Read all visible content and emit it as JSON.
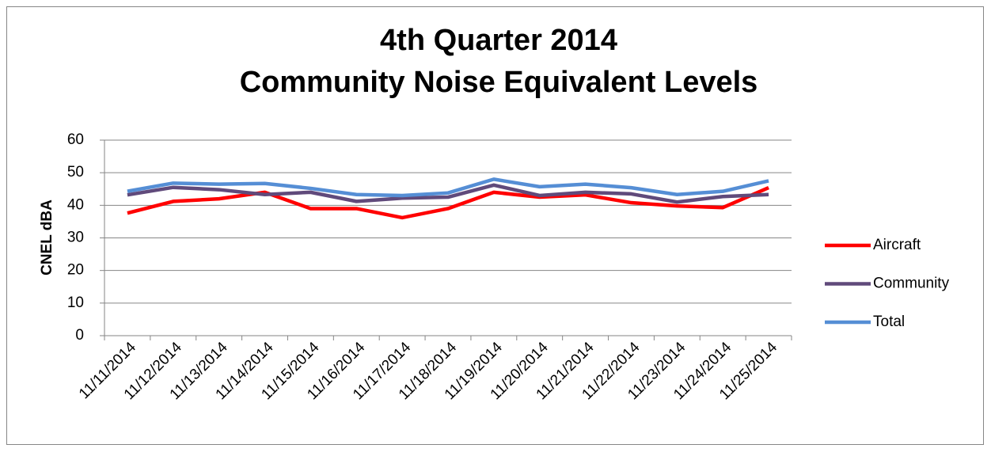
{
  "chart_data": {
    "type": "line",
    "title": "4th Quarter 2014",
    "subtitle": "Community Noise Equivalent Levels",
    "y_label": "CNEL dBA",
    "categories": [
      "11/11/2014",
      "11/12/2014",
      "11/13/2014",
      "11/14/2014",
      "11/15/2014",
      "11/16/2014",
      "11/17/2014",
      "11/18/2014",
      "11/19/2014",
      "11/20/2014",
      "11/21/2014",
      "11/22/2014",
      "11/23/2014",
      "11/24/2014",
      "11/25/2014"
    ],
    "series": [
      {
        "name": "Aircraft",
        "color": "#ff0000",
        "values": [
          37.6,
          41.2,
          42,
          44,
          39,
          39,
          36.2,
          39,
          44,
          42.5,
          43.2,
          40.8,
          39.8,
          39.3,
          45.4
        ]
      },
      {
        "name": "Community",
        "color": "#604a7b",
        "values": [
          43.2,
          45.5,
          44.8,
          43.3,
          44,
          41.2,
          42.2,
          42.5,
          46.2,
          43,
          44,
          43.5,
          41,
          42.7,
          43.3
        ]
      },
      {
        "name": "Total",
        "color": "#558ed5",
        "values": [
          44.3,
          46.8,
          46.5,
          46.7,
          45.2,
          43.3,
          43,
          43.8,
          48,
          45.7,
          46.5,
          45.4,
          43.3,
          44.3,
          47.5
        ]
      }
    ],
    "ylim": [
      0,
      60
    ],
    "yticks": [
      0,
      10,
      20,
      30,
      40,
      50,
      60
    ],
    "grid": true,
    "legend": "right"
  }
}
